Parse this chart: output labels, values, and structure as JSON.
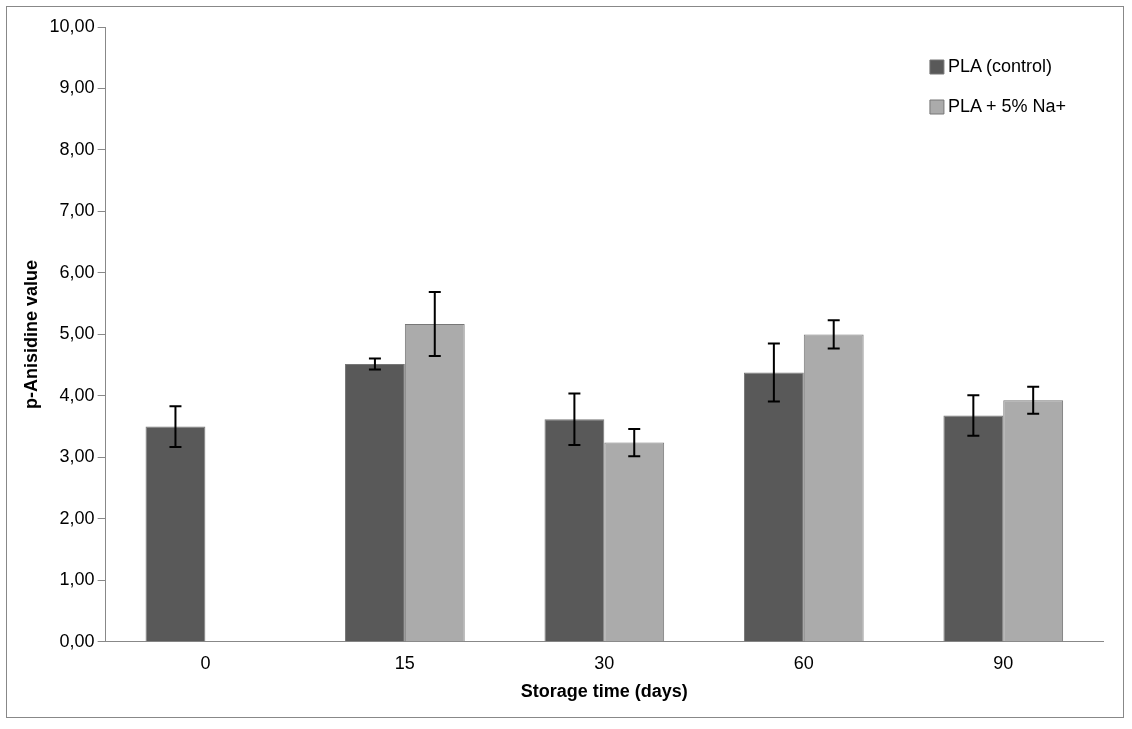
{
  "chart_data": {
    "type": "bar",
    "xlabel": "Storage time (days)",
    "ylabel": "p-Anisidine value",
    "categories": [
      "0",
      "15",
      "30",
      "60",
      "90"
    ],
    "series": [
      {
        "name": "PLA (control)",
        "color": "#595959",
        "values": [
          3.5,
          4.52,
          3.62,
          4.38,
          3.68
        ],
        "errors": [
          0.33,
          0.09,
          0.42,
          0.47,
          0.33
        ]
      },
      {
        "name": "PLA + 5% Na+",
        "color": "#ababab",
        "values": [
          null,
          5.17,
          3.24,
          5.0,
          3.93
        ],
        "errors": [
          null,
          0.52,
          0.22,
          0.23,
          0.22
        ]
      }
    ],
    "ylim": [
      0,
      10
    ],
    "yticks": [
      {
        "value": 0,
        "label": "0,00"
      },
      {
        "value": 1,
        "label": "1,00"
      },
      {
        "value": 2,
        "label": "2,00"
      },
      {
        "value": 3,
        "label": "3,00"
      },
      {
        "value": 4,
        "label": "4,00"
      },
      {
        "value": 5,
        "label": "5,00"
      },
      {
        "value": 6,
        "label": "6,00"
      },
      {
        "value": 7,
        "label": "7,00"
      },
      {
        "value": 8,
        "label": "8,00"
      },
      {
        "value": 9,
        "label": "9,00"
      },
      {
        "value": 10,
        "label": "10,00"
      }
    ],
    "grid": false,
    "legend": "top right"
  }
}
